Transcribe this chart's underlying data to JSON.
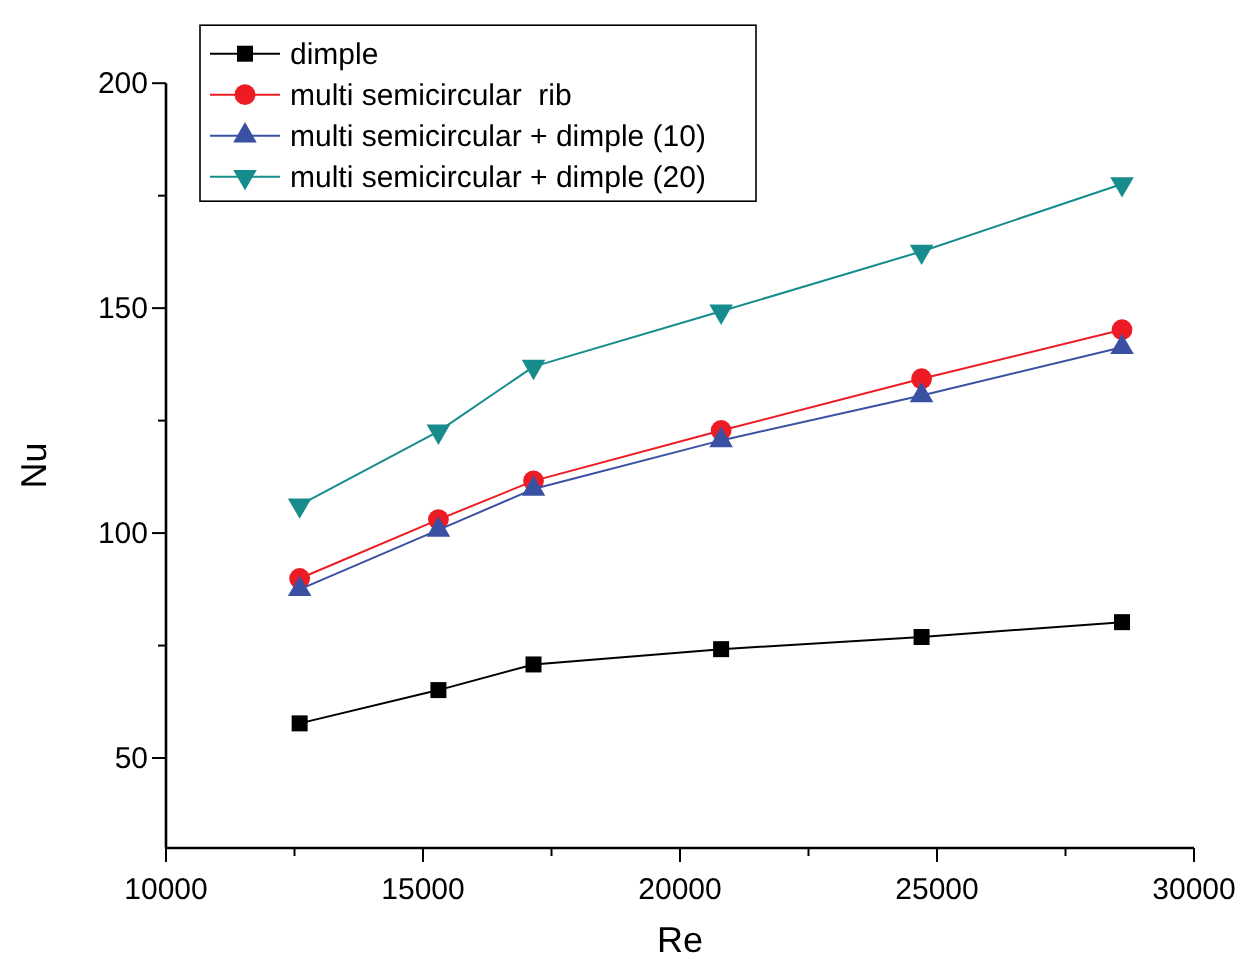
{
  "chart_data": {
    "type": "line",
    "xlabel": "Re",
    "ylabel": "Nu",
    "x": [
      12600,
      15300,
      17150,
      20800,
      24700,
      28600
    ],
    "xlim": [
      10000,
      30000
    ],
    "xticks": [
      10000,
      {
        "value": 12500,
        "label": null
      },
      15000,
      {
        "value": 17500,
        "label": null
      },
      20000,
      {
        "value": 22500,
        "label": null
      },
      25000,
      {
        "value": 27500,
        "label": null
      },
      30000
    ],
    "ylim": [
      30,
      200
    ],
    "yticks": [
      50,
      {
        "value": 75,
        "label": null
      },
      100,
      {
        "value": 125,
        "label": null
      },
      150,
      {
        "value": 175,
        "label": null
      },
      200
    ],
    "grid": false,
    "legend": "top left",
    "line_style": "solid",
    "series": [
      {
        "name": "dimple",
        "color": "#000000",
        "marker": "square",
        "values": [
          57.7,
          65.1,
          70.8,
          74.2,
          76.9,
          80.2
        ]
      },
      {
        "name": "multi semicircular  rib",
        "color": "#ed1c24",
        "marker": "circle",
        "values": [
          89.9,
          103.0,
          111.6,
          122.8,
          134.3,
          145.2
        ]
      },
      {
        "name": "multi semicircular + dimple (10)",
        "color": "#3a50a3",
        "marker": "triangle",
        "values": [
          87.5,
          100.7,
          109.8,
          120.6,
          130.6,
          141.3
        ]
      },
      {
        "name": "multi semicircular + dimple (20)",
        "color": "#168c8c",
        "marker": "triangle-down",
        "values": [
          106.2,
          122.6,
          137.0,
          149.3,
          162.6,
          177.6
        ]
      }
    ]
  }
}
